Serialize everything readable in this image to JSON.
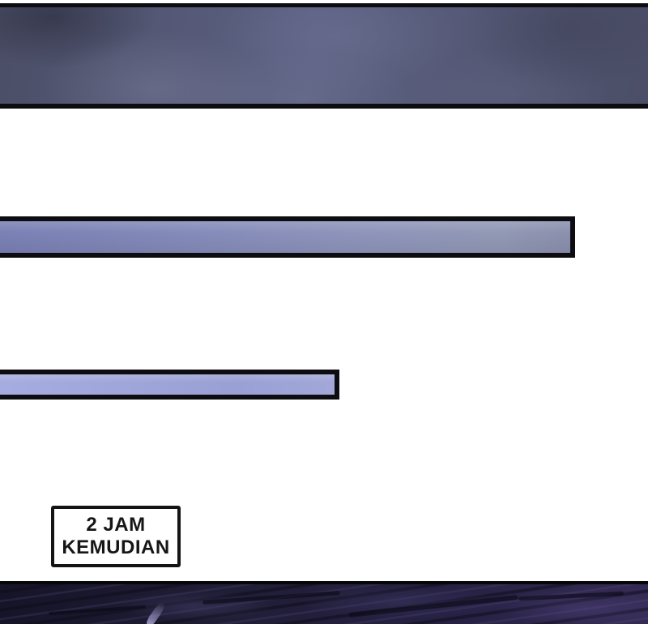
{
  "page": {
    "kind": "comic-transition-page",
    "background": "#ffffff"
  },
  "caption_box": {
    "line1": "2 JAM",
    "line2": "KEMUDIAN"
  },
  "panels": {
    "top": "cloudy-sky-artwork",
    "bottom": "dark-purple-rock-artwork"
  },
  "transition_bars": {
    "count": 2,
    "bar1": "long-periwinkle-strip",
    "bar2": "short-lavender-strip"
  },
  "colors": {
    "ink": "#0c0c11",
    "paper": "#ffffff",
    "bar1-fill-b": "#8f95bb",
    "bar2-fill-b": "#9aa0d4",
    "sky-base": "#565a78",
    "sky-light": "#6b6f92",
    "night-base": "#201d36",
    "night-purple": "#342b54",
    "streak-light": "#b3aadb",
    "caption-text": "#161616"
  }
}
